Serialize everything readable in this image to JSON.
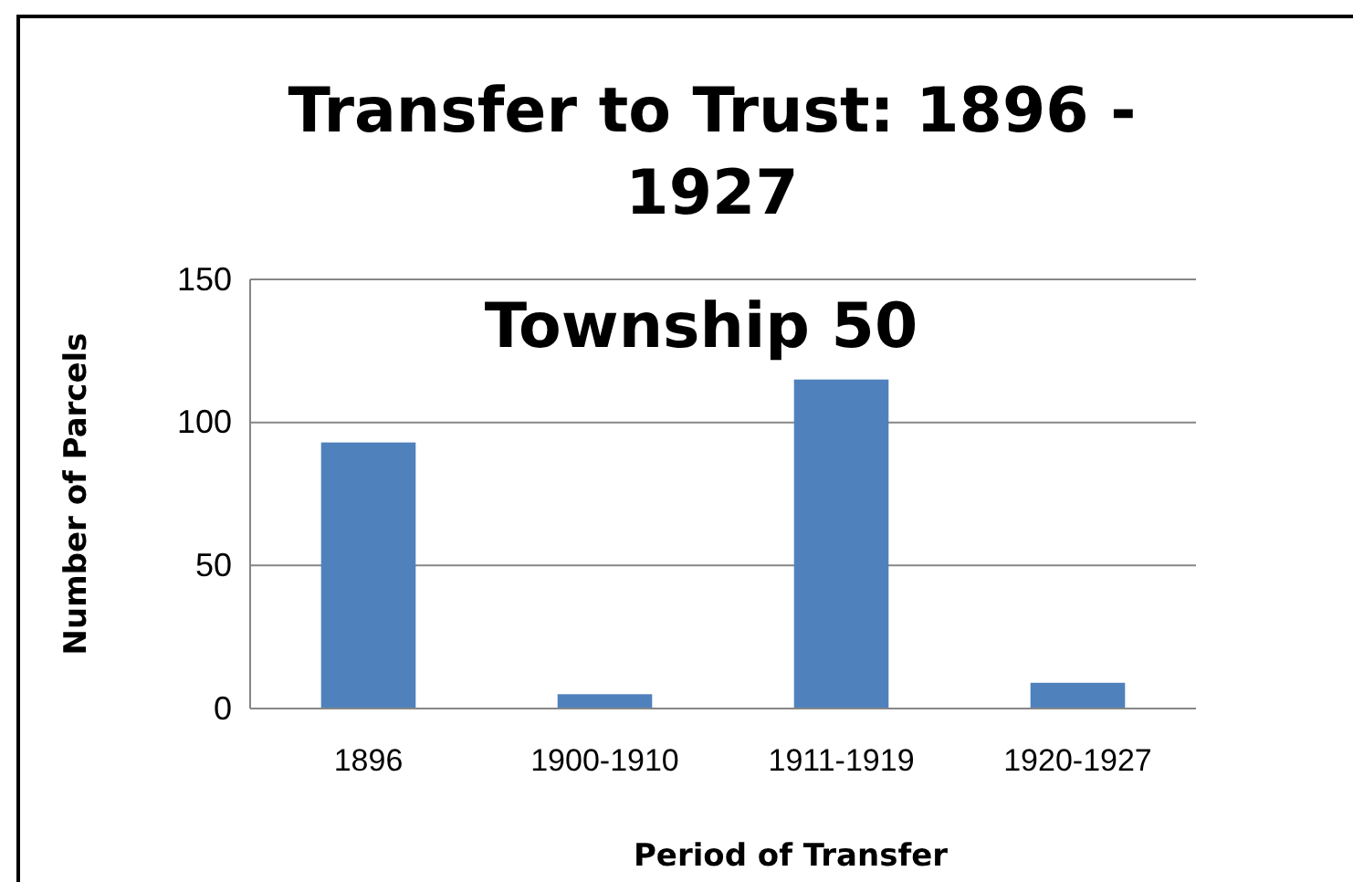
{
  "chart_data": {
    "type": "bar",
    "title": "Transfer to Trust: 1896 - 1927",
    "subtitle": "Township 50",
    "xlabel": "Period of Transfer",
    "ylabel": "Number of Parcels",
    "categories": [
      "1896",
      "1900-1910",
      "1911-1919",
      "1920-1927"
    ],
    "series": [
      {
        "color": "#4f81bd",
        "values": [
          93,
          5,
          115,
          9
        ]
      }
    ],
    "ylim": [
      0,
      150
    ],
    "yticks": [
      0,
      50,
      100,
      150
    ],
    "grid": "y"
  }
}
